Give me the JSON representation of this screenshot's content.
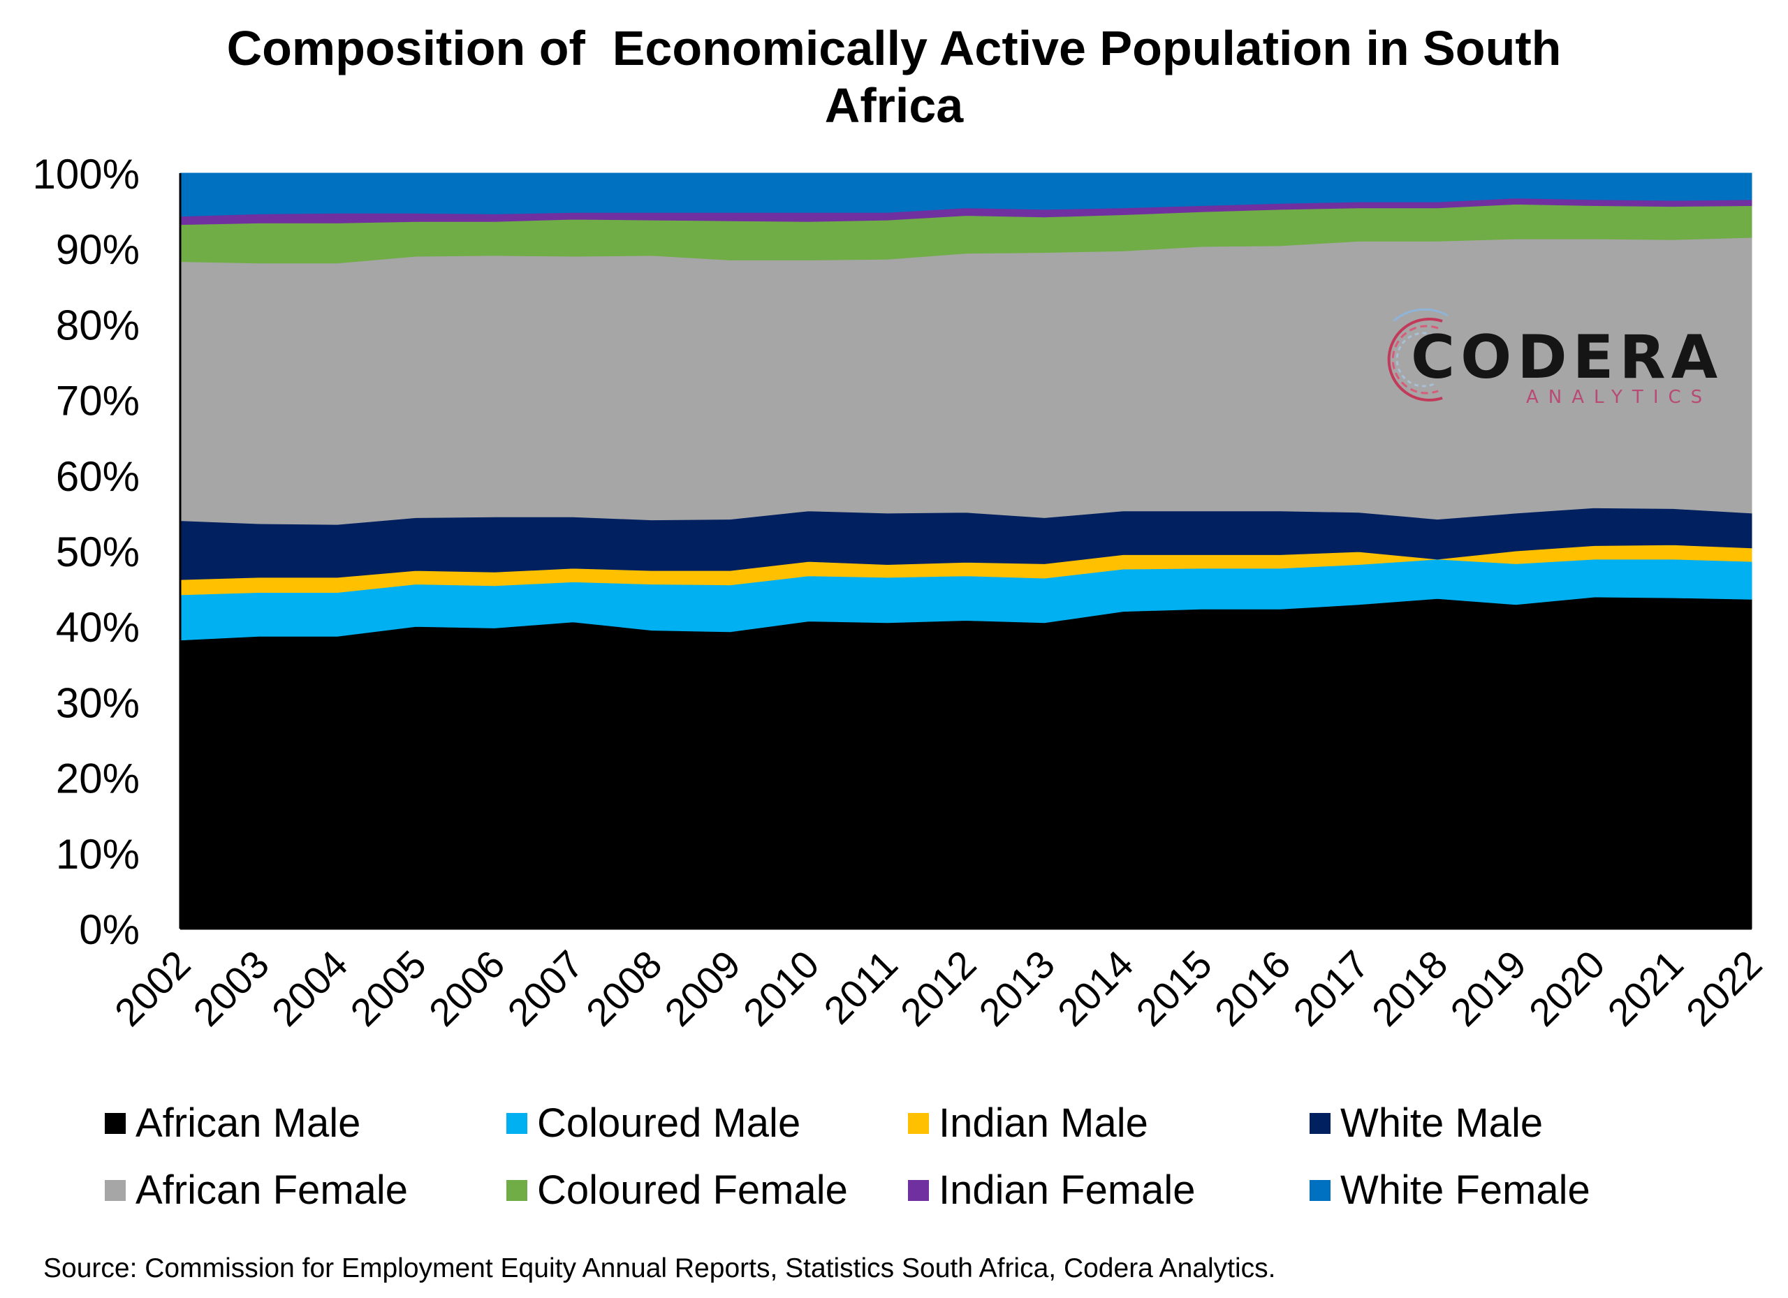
{
  "chart_data": {
    "type": "area",
    "stacked": true,
    "percent": true,
    "title_lines": [
      "Composition of  Economically Active Population in South",
      "Africa"
    ],
    "xlabel": "",
    "ylabel": "",
    "ylim": [
      0,
      100
    ],
    "y_ticks": [
      "0%",
      "10%",
      "20%",
      "30%",
      "40%",
      "50%",
      "60%",
      "70%",
      "80%",
      "90%",
      "100%"
    ],
    "categories": [
      "2002",
      "2003",
      "2004",
      "2005",
      "2006",
      "2007",
      "2008",
      "2009",
      "2010",
      "2011",
      "2012",
      "2013",
      "2014",
      "2015",
      "2016",
      "2017",
      "2018",
      "2019",
      "2020",
      "2021",
      "2022"
    ],
    "legend_position": "bottom",
    "grid": false,
    "series": [
      {
        "name": "African Male",
        "color": "#000000",
        "values": [
          38.2,
          38.7,
          38.7,
          40.0,
          39.8,
          40.6,
          39.5,
          39.3,
          40.7,
          40.5,
          40.8,
          40.5,
          42.0,
          42.3,
          42.3,
          42.9,
          43.7,
          42.9,
          43.9,
          43.8,
          43.6
        ]
      },
      {
        "name": "Coloured Male",
        "color": "#00b0f0",
        "values": [
          6.0,
          5.8,
          5.8,
          5.6,
          5.6,
          5.3,
          6.1,
          6.2,
          6.0,
          6.0,
          5.9,
          5.9,
          5.6,
          5.4,
          5.4,
          5.3,
          5.2,
          5.4,
          5.0,
          5.1,
          5.0
        ]
      },
      {
        "name": "Indian Male",
        "color": "#ffc000",
        "values": [
          2.0,
          2.0,
          2.0,
          1.8,
          1.8,
          1.8,
          1.8,
          1.9,
          1.9,
          1.7,
          1.8,
          1.9,
          1.9,
          1.8,
          1.8,
          1.7,
          0.0,
          1.7,
          1.8,
          1.9,
          1.8
        ]
      },
      {
        "name": "White Male",
        "color": "#002060",
        "values": [
          7.8,
          7.1,
          7.0,
          7.0,
          7.3,
          6.8,
          6.7,
          6.8,
          6.7,
          6.8,
          6.6,
          6.1,
          5.8,
          5.8,
          5.8,
          5.2,
          5.3,
          5.0,
          5.0,
          4.8,
          4.6
        ]
      },
      {
        "name": "African Female",
        "color": "#a6a6a6",
        "values": [
          34.3,
          34.5,
          34.6,
          34.6,
          34.6,
          34.5,
          35.0,
          34.3,
          33.2,
          33.6,
          34.3,
          35.1,
          34.4,
          35.0,
          35.1,
          35.9,
          36.8,
          36.3,
          35.6,
          35.6,
          36.5
        ]
      },
      {
        "name": "Coloured Female",
        "color": "#70ad47",
        "values": [
          4.9,
          5.3,
          5.3,
          4.6,
          4.5,
          4.9,
          4.7,
          5.2,
          5.1,
          5.2,
          5.0,
          4.7,
          4.8,
          4.6,
          4.8,
          4.4,
          4.4,
          4.6,
          4.4,
          4.4,
          4.2
        ]
      },
      {
        "name": "Indian Female",
        "color": "#7030a0",
        "values": [
          1.1,
          1.2,
          1.3,
          1.1,
          1.0,
          0.9,
          1.0,
          1.1,
          1.2,
          1.0,
          1.0,
          1.0,
          0.9,
          0.8,
          0.8,
          0.8,
          0.8,
          0.8,
          0.8,
          0.8,
          0.8
        ]
      },
      {
        "name": "White Female",
        "color": "#0070c0",
        "values": [
          5.7,
          5.4,
          5.3,
          5.3,
          5.4,
          5.2,
          5.2,
          5.2,
          5.2,
          5.2,
          4.6,
          4.8,
          4.6,
          4.3,
          4.0,
          3.8,
          3.8,
          3.3,
          3.5,
          3.6,
          3.5
        ]
      }
    ]
  },
  "source": "Source: Commission for Employment Equity Annual Reports, Statistics South Africa, Codera Analytics.",
  "logo": {
    "word": "CODERA",
    "sub": "ANALYTICS"
  }
}
